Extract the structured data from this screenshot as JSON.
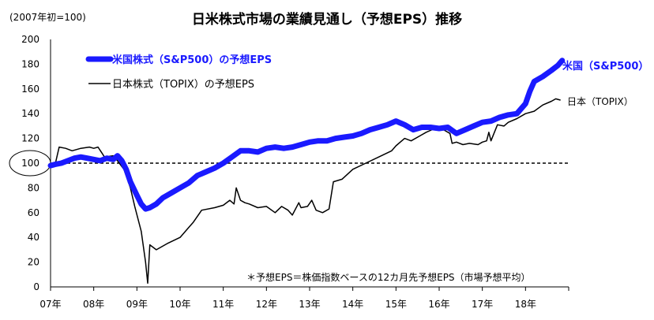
{
  "chart_data": {
    "type": "line",
    "title": "日米株式市場の業績見通し（予想EPS）推移",
    "subtitle": "(2007年初=100)",
    "footnote": "＊予想EPS＝株価指数ベースの12カ月先予想EPS（市場予想平均）",
    "ylim": [
      0,
      200
    ],
    "yticks": [
      0,
      20,
      40,
      60,
      80,
      100,
      120,
      140,
      160,
      180,
      200
    ],
    "x_tick_labels": [
      "07年",
      "08年",
      "09年",
      "10年",
      "11年",
      "12年",
      "13年",
      "14年",
      "15年",
      "16年",
      "17年",
      "18年"
    ],
    "xlim": [
      2007,
      2019
    ],
    "reference_line": {
      "y": 100,
      "style": "dashed",
      "label": "100"
    },
    "legend_position": "top-left",
    "series": [
      {
        "name": "米国株式（S&P500）の予想EPS",
        "end_label": "米国（S&P500）",
        "color": "#1a1aff",
        "width": "thick",
        "x": [
          2007.0,
          2007.1,
          2007.25,
          2007.4,
          2007.55,
          2007.7,
          2007.85,
          2008.0,
          2008.15,
          2008.3,
          2008.45,
          2008.55,
          2008.65,
          2008.75,
          2008.85,
          2009.0,
          2009.1,
          2009.2,
          2009.3,
          2009.45,
          2009.6,
          2009.8,
          2010.0,
          2010.2,
          2010.4,
          2010.6,
          2010.8,
          2011.0,
          2011.2,
          2011.4,
          2011.6,
          2011.8,
          2012.0,
          2012.2,
          2012.4,
          2012.6,
          2012.8,
          2013.0,
          2013.2,
          2013.4,
          2013.6,
          2013.8,
          2014.0,
          2014.2,
          2014.4,
          2014.6,
          2014.8,
          2015.0,
          2015.2,
          2015.4,
          2015.6,
          2015.8,
          2016.0,
          2016.2,
          2016.4,
          2016.6,
          2016.8,
          2017.0,
          2017.2,
          2017.4,
          2017.6,
          2017.8,
          2018.0,
          2018.1,
          2018.2,
          2018.4,
          2018.6,
          2018.75,
          2018.85
        ],
        "values": [
          98,
          99,
          100,
          102,
          104,
          105,
          104,
          103,
          102,
          104,
          103,
          106,
          102,
          95,
          85,
          74,
          67,
          63,
          64,
          67,
          72,
          76,
          80,
          84,
          90,
          93,
          96,
          100,
          105,
          110,
          110,
          109,
          112,
          113,
          112,
          113,
          115,
          117,
          118,
          118,
          120,
          121,
          122,
          124,
          127,
          129,
          131,
          134,
          131,
          127,
          129,
          129,
          128,
          129,
          124,
          127,
          130,
          133,
          134,
          137,
          139,
          140,
          148,
          158,
          166,
          170,
          175,
          179,
          183
        ]
      },
      {
        "name": "日本株式（TOPIX）の予想EPS",
        "end_label": "日本（TOPIX）",
        "color": "#000000",
        "width": "thin",
        "x": [
          2007.0,
          2007.1,
          2007.2,
          2007.35,
          2007.5,
          2007.7,
          2007.9,
          2008.0,
          2008.1,
          2008.25,
          2008.45,
          2008.55,
          2008.7,
          2008.85,
          2008.95,
          2009.1,
          2009.2,
          2009.25,
          2009.3,
          2009.45,
          2009.7,
          2010.0,
          2010.2,
          2010.3,
          2010.5,
          2010.8,
          2011.0,
          2011.15,
          2011.25,
          2011.3,
          2011.4,
          2011.5,
          2011.6,
          2011.8,
          2012.0,
          2012.2,
          2012.35,
          2012.5,
          2012.6,
          2012.75,
          2012.8,
          2012.95,
          2013.05,
          2013.15,
          2013.3,
          2013.45,
          2013.55,
          2013.75,
          2014.0,
          2014.3,
          2014.6,
          2014.9,
          2015.0,
          2015.2,
          2015.35,
          2015.55,
          2015.7,
          2015.9,
          2016.1,
          2016.25,
          2016.3,
          2016.4,
          2016.55,
          2016.7,
          2016.9,
          2017.0,
          2017.1,
          2017.15,
          2017.2,
          2017.35,
          2017.5,
          2017.6,
          2017.8,
          2018.0,
          2018.2,
          2018.4,
          2018.6,
          2018.7,
          2018.8
        ],
        "values": [
          100,
          98,
          113,
          112,
          110,
          112,
          113,
          112,
          113,
          105,
          106,
          102,
          95,
          80,
          65,
          45,
          20,
          3,
          34,
          30,
          35,
          40,
          48,
          52,
          62,
          64,
          66,
          70,
          67,
          80,
          70,
          68,
          67,
          64,
          65,
          60,
          65,
          62,
          58,
          68,
          64,
          65,
          70,
          62,
          60,
          63,
          85,
          87,
          95,
          100,
          105,
          110,
          114,
          120,
          118,
          122,
          125,
          128,
          127,
          124,
          116,
          117,
          115,
          116,
          115,
          117,
          118,
          125,
          118,
          131,
          130,
          133,
          136,
          140,
          142,
          147,
          150,
          152,
          151
        ]
      }
    ]
  }
}
